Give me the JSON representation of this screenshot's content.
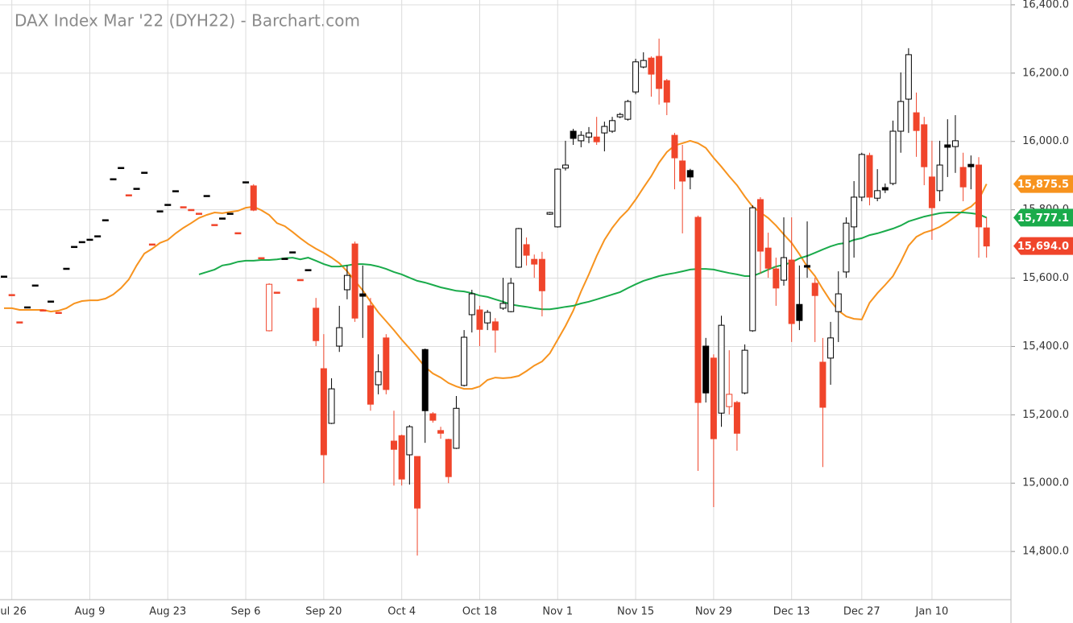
{
  "chart_data": {
    "type": "candlestick",
    "title": "DAX Index Mar '22 (DYH22) - Barchart.com",
    "categories": [
      null,
      "Jul 26",
      null,
      null,
      null,
      null,
      null,
      null,
      null,
      null,
      null,
      "Aug 9",
      null,
      null,
      null,
      null,
      null,
      null,
      null,
      null,
      null,
      "Aug 23",
      null,
      null,
      null,
      null,
      null,
      null,
      null,
      null,
      null,
      "Sep 6",
      null,
      null,
      null,
      null,
      null,
      null,
      null,
      null,
      null,
      "Sep 20",
      null,
      null,
      null,
      null,
      null,
      null,
      null,
      null,
      null,
      "Oct 4",
      null,
      null,
      null,
      null,
      null,
      null,
      null,
      null,
      null,
      "Oct 18",
      null,
      null,
      null,
      null,
      null,
      null,
      null,
      null,
      null,
      "Nov 1",
      null,
      null,
      null,
      null,
      null,
      null,
      null,
      null,
      null,
      "Nov 15",
      null,
      null,
      null,
      null,
      null,
      null,
      null,
      null,
      null,
      "Nov 29",
      null,
      null,
      null,
      null,
      null,
      null,
      null,
      null,
      null,
      "Dec 13",
      null,
      null,
      null,
      null,
      null,
      null,
      null,
      null,
      "Dec 27",
      null,
      null,
      null,
      null,
      null,
      null,
      null,
      null,
      "Jan 10",
      null,
      null,
      null,
      null,
      null,
      null,
      null
    ],
    "open": [
      15606,
      15552,
      15472,
      15516,
      15580,
      15507,
      15533,
      15500,
      15629,
      15693,
      15707,
      15714,
      15724,
      15771,
      15891,
      15924,
      15844,
      15863,
      15910,
      15700,
      15797,
      15816,
      15856,
      15809,
      15801,
      15790,
      15842,
      15757,
      15776,
      15790,
      15733,
      15882,
      15870,
      15660,
      15446,
      15559,
      15658,
      15677,
      15596,
      15625,
      15512,
      15335,
      15175,
      15401,
      15566,
      15700,
      15554,
      15519,
      15288,
      15425,
      15123,
      15139,
      15083,
      15078,
      15391,
      15203,
      15154,
      15128,
      15102,
      15286,
      15493,
      15507,
      15469,
      15472,
      15512,
      15502,
      15632,
      15698,
      15655,
      15655,
      15787,
      15750,
      15922,
      16030,
      16002,
      16013,
      16013,
      16025,
      16030,
      16072,
      16065,
      16145,
      16218,
      16244,
      16249,
      16178,
      16018,
      15943,
      15915,
      15778,
      15401,
      15366,
      15205,
      15224,
      15236,
      15264,
      15446,
      15830,
      15688,
      15627,
      15594,
      15653,
      15523,
      15637,
      15585,
      15354,
      15366,
      15502,
      15618,
      15750,
      15837,
      15959,
      15834,
      15865,
      15877,
      16030,
      16124,
      16084,
      16049,
      15896,
      15856,
      15990,
      15985,
      15924,
      15933,
      15931,
      15747
    ],
    "high": [
      15606,
      15552,
      15472,
      15516,
      15580,
      15507,
      15533,
      15500,
      15629,
      15693,
      15707,
      15714,
      15724,
      15771,
      15891,
      15924,
      15844,
      15863,
      15910,
      15700,
      15797,
      15816,
      15856,
      15809,
      15801,
      15790,
      15842,
      15757,
      15776,
      15790,
      15733,
      15882,
      15875,
      15660,
      15585,
      15559,
      15658,
      15677,
      15596,
      15625,
      15542,
      15436,
      15307,
      15519,
      15637,
      15707,
      15637,
      15542,
      15377,
      15436,
      15212,
      15142,
      15170,
      15078,
      15394,
      15208,
      15165,
      15130,
      15255,
      15448,
      15566,
      15519,
      15507,
      15483,
      15601,
      15601,
      15747,
      15719,
      15669,
      15677,
      15794,
      15921,
      16002,
      16037,
      16030,
      16042,
      16072,
      16058,
      16072,
      16084,
      16122,
      16242,
      16261,
      16249,
      16301,
      16183,
      16025,
      15990,
      15920,
      15783,
      15425,
      15377,
      15490,
      15389,
      15241,
      15406,
      15813,
      15837,
      15733,
      15660,
      15778,
      15778,
      15637,
      15766,
      15601,
      15425,
      15472,
      15620,
      15778,
      15884,
      15967,
      15967,
      15919,
      15877,
      16061,
      16202,
      16273,
      16143,
      16072,
      16002,
      16002,
      16065,
      16077,
      15967,
      15959,
      15954,
      15778
    ],
    "low": [
      15606,
      15552,
      15472,
      15516,
      15580,
      15507,
      15533,
      15500,
      15629,
      15693,
      15707,
      15714,
      15724,
      15771,
      15891,
      15924,
      15844,
      15863,
      15910,
      15700,
      15797,
      15816,
      15856,
      15809,
      15801,
      15790,
      15842,
      15757,
      15776,
      15790,
      15733,
      15882,
      15796,
      15660,
      15444,
      15559,
      15658,
      15677,
      15596,
      15625,
      15401,
      15000,
      15173,
      15384,
      15538,
      15472,
      15425,
      15212,
      15260,
      15260,
      14993,
      14993,
      14996,
      14788,
      15118,
      15177,
      15130,
      15000,
      15100,
      15283,
      15441,
      15401,
      15448,
      15382,
      15507,
      15500,
      15630,
      15637,
      15601,
      15488,
      15785,
      15748,
      15915,
      15990,
      15983,
      15995,
      15990,
      15971,
      16025,
      16068,
      16061,
      16138,
      16214,
      16131,
      16108,
      16077,
      15860,
      15731,
      15860,
      15036,
      15236,
      14930,
      15165,
      15201,
      15095,
      15260,
      15443,
      15613,
      15601,
      15519,
      15578,
      15413,
      15448,
      15601,
      15413,
      15047,
      15288,
      15413,
      15601,
      15660,
      15825,
      15813,
      15825,
      15849,
      15872,
      15967,
      16025,
      15955,
      15872,
      15712,
      15825,
      15896,
      15908,
      15825,
      15860,
      15660,
      15660
    ],
    "close": [
      15606,
      15552,
      15472,
      15516,
      15580,
      15507,
      15533,
      15500,
      15629,
      15693,
      15707,
      15714,
      15724,
      15771,
      15891,
      15924,
      15844,
      15863,
      15910,
      15700,
      15797,
      15816,
      15856,
      15809,
      15801,
      15790,
      15842,
      15757,
      15776,
      15790,
      15733,
      15882,
      15799,
      15660,
      15582,
      15559,
      15658,
      15677,
      15596,
      15625,
      15417,
      15083,
      15276,
      15455,
      15608,
      15483,
      15547,
      15231,
      15326,
      15274,
      15099,
      15012,
      15165,
      14927,
      15212,
      15184,
      15146,
      15019,
      15219,
      15427,
      15554,
      15450,
      15500,
      15448,
      15526,
      15585,
      15745,
      15667,
      15641,
      15563,
      15792,
      15919,
      15931,
      16009,
      16018,
      16025,
      15999,
      16044,
      16061,
      16079,
      16117,
      16233,
      16237,
      16197,
      16155,
      16115,
      15952,
      15884,
      15896,
      15236,
      15264,
      15130,
      15462,
      15260,
      15146,
      15389,
      15806,
      15679,
      15629,
      15571,
      15660,
      15467,
      15476,
      15632,
      15549,
      15222,
      15425,
      15554,
      15761,
      15837,
      15962,
      15837,
      15856,
      15858,
      16030,
      16117,
      16254,
      16032,
      15926,
      15806,
      15931,
      15983,
      16002,
      15867,
      15926,
      15750,
      15694
    ],
    "up_color": "#000000",
    "down_color": "#f0452b",
    "series": [
      {
        "color": "#f7931e",
        "values": [
          15512,
          15512,
          15507,
          15507,
          15507,
          15507,
          15502,
          15505,
          15512,
          15526,
          15533,
          15535,
          15535,
          15540,
          15552,
          15571,
          15596,
          15637,
          15672,
          15686,
          15703,
          15712,
          15731,
          15747,
          15761,
          15776,
          15785,
          15792,
          15790,
          15794,
          15797,
          15806,
          15809,
          15799,
          15785,
          15761,
          15752,
          15735,
          15717,
          15700,
          15686,
          15674,
          15660,
          15644,
          15620,
          15592,
          15564,
          15531,
          15500,
          15474,
          15448,
          15420,
          15394,
          15368,
          15340,
          15321,
          15309,
          15293,
          15283,
          15276,
          15276,
          15283,
          15302,
          15309,
          15307,
          15309,
          15314,
          15328,
          15344,
          15356,
          15380,
          15420,
          15460,
          15505,
          15561,
          15611,
          15665,
          15712,
          15747,
          15776,
          15799,
          15830,
          15865,
          15898,
          15938,
          15969,
          15988,
          15995,
          16002,
          15995,
          15981,
          15952,
          15926,
          15898,
          15872,
          15839,
          15809,
          15792,
          15776,
          15754,
          15728,
          15703,
          15670,
          15634,
          15606,
          15568,
          15533,
          15505,
          15488,
          15481,
          15479,
          15528,
          15556,
          15580,
          15606,
          15648,
          15695,
          15721,
          15733,
          15740,
          15750,
          15764,
          15780,
          15797,
          15809,
          15830,
          15875.5
        ]
      },
      {
        "color": "#1aab4b",
        "values": [
          null,
          null,
          null,
          null,
          null,
          null,
          null,
          null,
          null,
          null,
          null,
          null,
          null,
          null,
          null,
          null,
          null,
          null,
          null,
          null,
          null,
          null,
          null,
          null,
          null,
          15611,
          15618,
          15625,
          15637,
          15641,
          15648,
          15651,
          15651,
          15653,
          15653,
          15655,
          15658,
          15660,
          15655,
          15660,
          15651,
          15641,
          15634,
          15634,
          15637,
          15641,
          15641,
          15639,
          15634,
          15627,
          15618,
          15611,
          15601,
          15592,
          15587,
          15580,
          15573,
          15568,
          15563,
          15561,
          15556,
          15549,
          15545,
          15538,
          15531,
          15523,
          15519,
          15516,
          15512,
          15509,
          15509,
          15512,
          15516,
          15519,
          15526,
          15531,
          15538,
          15545,
          15552,
          15559,
          15571,
          15582,
          15592,
          15599,
          15606,
          15611,
          15615,
          15620,
          15625,
          15627,
          15627,
          15625,
          15620,
          15615,
          15611,
          15606,
          15606,
          15615,
          15625,
          15634,
          15639,
          15646,
          15658,
          15665,
          15674,
          15684,
          15693,
          15700,
          15703,
          15712,
          15717,
          15726,
          15731,
          15738,
          15745,
          15754,
          15766,
          15773,
          15780,
          15785,
          15790,
          15792,
          15792,
          15792,
          15790,
          15787,
          15777.1
        ]
      }
    ],
    "price_markers": [
      {
        "value": 15875.5,
        "label": "15,875.5",
        "color": "#f7931e"
      },
      {
        "value": 15777.1,
        "label": "15,777.1",
        "color": "#1aab4b"
      },
      {
        "value": 15694,
        "label": "15,694.0",
        "color": "#f0452b"
      }
    ],
    "ylim": [
      14659,
      16414
    ],
    "yticks": [
      {
        "value": 14800,
        "label": "14,800.0"
      },
      {
        "value": 15000,
        "label": "15,000.0"
      },
      {
        "value": 15200,
        "label": "15,200.0"
      },
      {
        "value": 15400,
        "label": "15,400.0"
      },
      {
        "value": 15600,
        "label": "15,600.0"
      },
      {
        "value": 15800,
        "label": "15,800.0"
      },
      {
        "value": 16000,
        "label": "16,000.0"
      },
      {
        "value": 16200,
        "label": "16,200.0"
      },
      {
        "value": 16400,
        "label": "16,400.0"
      }
    ],
    "grid": true
  }
}
